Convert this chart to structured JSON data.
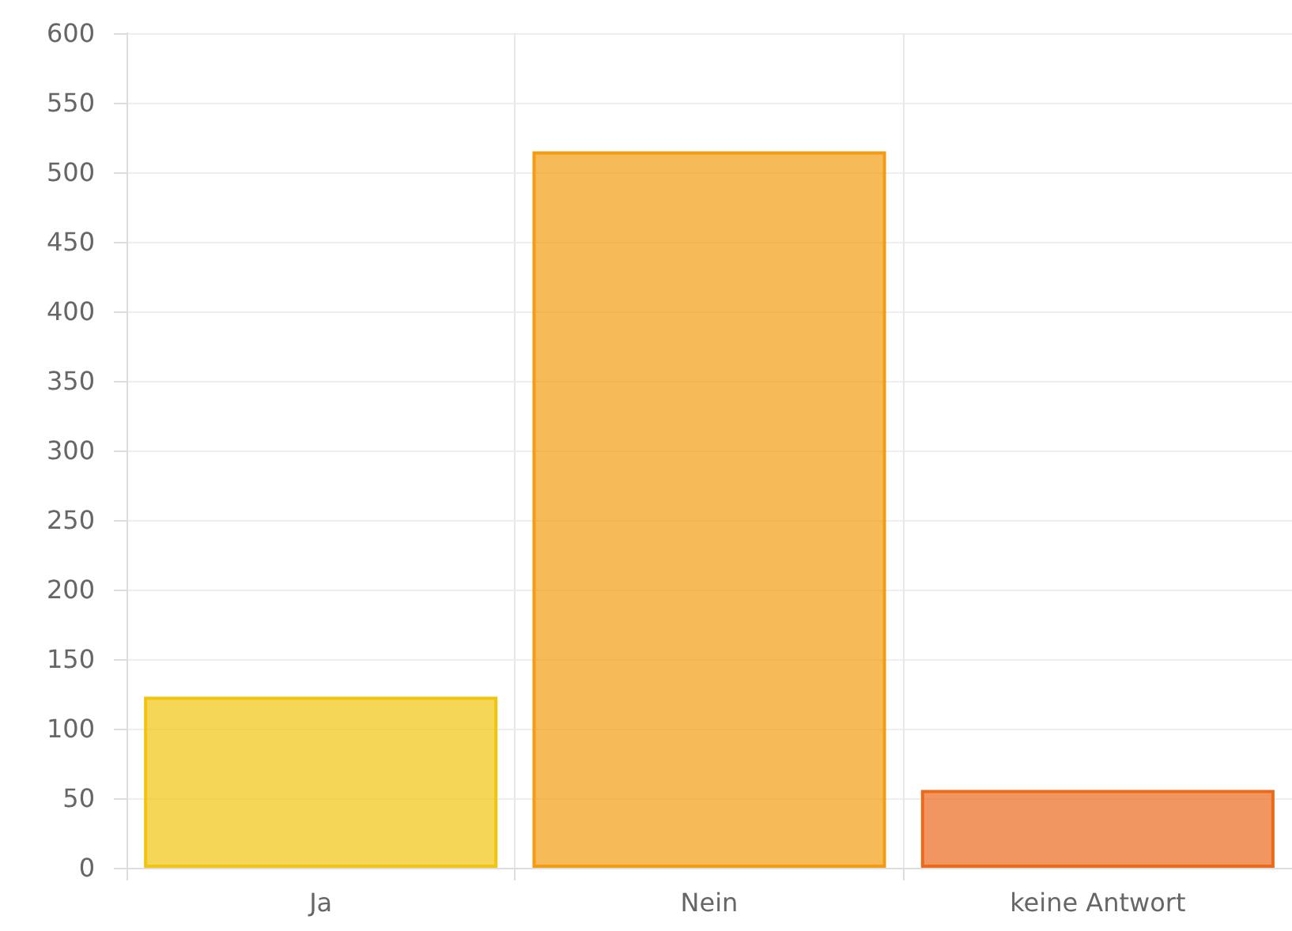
{
  "chart_data": {
    "type": "bar",
    "categories": [
      "Ja",
      "Nein",
      "keine Antwort"
    ],
    "values": [
      123,
      515,
      56
    ],
    "colors": [
      "#f1c40f",
      "#f39c12",
      "#eb6a1c"
    ],
    "ylim": [
      0,
      600
    ],
    "yticks": [
      0,
      50,
      100,
      150,
      200,
      250,
      300,
      350,
      400,
      450,
      500,
      550,
      600
    ],
    "grid": true
  }
}
